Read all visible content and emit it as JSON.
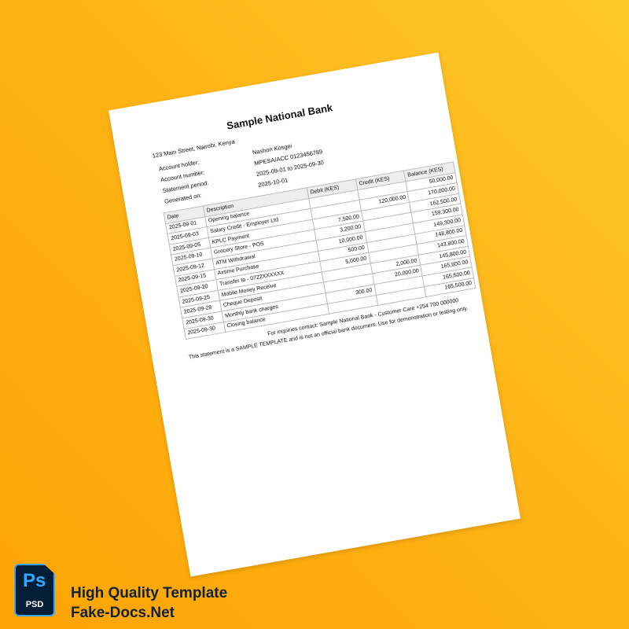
{
  "document": {
    "bank_name": "Sample National Bank",
    "address": "123 Main Street, Nairobi, Kenya",
    "fields": [
      {
        "label": "Account holder:",
        "value": "Nashon Kosgei"
      },
      {
        "label": "Account number:",
        "value": "MPESA/ACC 0123456789"
      },
      {
        "label": "Statement period:",
        "value": "2025-09-01 to 2025-09-30"
      },
      {
        "label": "Generated on:",
        "value": "2025-10-01"
      }
    ],
    "table": {
      "headers": [
        "Date",
        "Description",
        "Debit (KES)",
        "Credit (KES)",
        "Balance (KES)"
      ],
      "rows": [
        [
          "2025-09-01",
          "Opening balance",
          "",
          "",
          "50,000.00"
        ],
        [
          "2025-09-03",
          "Salary Credit - Employer Ltd",
          "",
          "120,000.00",
          "170,000.00"
        ],
        [
          "2025-09-05",
          "KPLC Payment",
          "7,500.00",
          "",
          "162,500.00"
        ],
        [
          "2025-09-10",
          "Grocery Store - POS",
          "3,200.00",
          "",
          "159,300.00"
        ],
        [
          "2025-09-12",
          "ATM Withdrawal",
          "10,000.00",
          "",
          "149,300.00"
        ],
        [
          "2025-09-15",
          "Airtime Purchase",
          "500.00",
          "",
          "148,800.00"
        ],
        [
          "2025-09-20",
          "Transfer to - 0722XXXXXX",
          "5,000.00",
          "",
          "143,800.00"
        ],
        [
          "2025-09-25",
          "Mobile Money Receive",
          "",
          "2,000.00",
          "145,800.00"
        ],
        [
          "2025-09-28",
          "Cheque Deposit",
          "",
          "20,000.00",
          "165,800.00"
        ],
        [
          "2025-09-30",
          "Monthly bank charges",
          "300.00",
          "",
          "165,500.00"
        ],
        [
          "2025-09-30",
          "Closing balance",
          "",
          "",
          "165,500.00"
        ]
      ]
    },
    "footer_contact": "For inquiries contact: Sample National Bank - Customer Care +254 700 000000",
    "footer_disclaimer": "This statement is a SAMPLE TEMPLATE and is not an official bank document. Use for demonstration or testing only."
  },
  "badge": {
    "icon": "photoshop-icon",
    "ps": "Ps",
    "psd": "PSD"
  },
  "branding": {
    "line1": "High Quality Template",
    "line2": "Fake-Docs.Net"
  },
  "colors": {
    "background": "#fdb416",
    "brand_text": "#0f2238",
    "ps_blue": "#31a8ff",
    "ps_dark": "#001e36"
  }
}
